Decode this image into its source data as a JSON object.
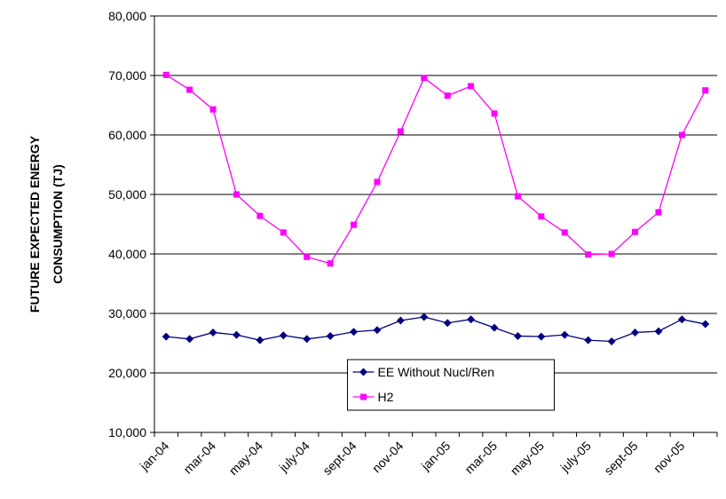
{
  "chart_data": {
    "type": "line",
    "ylabel": [
      "FUTURE EXPECTED ENERGY",
      "CONSUMPTION (TJ)"
    ],
    "categories": [
      "jan-04",
      null,
      "mar-04",
      null,
      "may-04",
      null,
      "july-04",
      null,
      "sept-04",
      null,
      "nov-04",
      null,
      "jan-05",
      null,
      "mar-05",
      null,
      "may-05",
      null,
      "july-05",
      null,
      "sept-05",
      null,
      "nov-05",
      null
    ],
    "series": [
      {
        "name": "EE Without Nucl/Ren",
        "color": "#000080",
        "marker": "diamond",
        "values": [
          26100,
          25700,
          26800,
          26400,
          25500,
          26300,
          25700,
          26200,
          26900,
          27200,
          28800,
          29400,
          28400,
          29000,
          27600,
          26200,
          26100,
          26400,
          25500,
          25300,
          26800,
          27000,
          29000,
          28200
        ]
      },
      {
        "name": "H2",
        "color": "#ff00ff",
        "marker": "square",
        "values": [
          70100,
          67600,
          64300,
          50000,
          46400,
          43600,
          39500,
          38400,
          44900,
          52100,
          60600,
          69600,
          66600,
          68200,
          63600,
          49700,
          46300,
          43600,
          39900,
          40000,
          43700,
          47000,
          60000,
          67500
        ]
      }
    ],
    "ylim": [
      10000,
      80000
    ],
    "yticks": [
      {
        "value": 10000,
        "label": "10,000"
      },
      {
        "value": 20000,
        "label": "20,000"
      },
      {
        "value": 30000,
        "label": "30,000"
      },
      {
        "value": 40000,
        "label": "40,000"
      },
      {
        "value": 50000,
        "label": "50,000"
      },
      {
        "value": 60000,
        "label": "60,000"
      },
      {
        "value": 70000,
        "label": "70,000"
      },
      {
        "value": 80000,
        "label": "80,000"
      }
    ],
    "grid": true,
    "legend": "lower center"
  }
}
